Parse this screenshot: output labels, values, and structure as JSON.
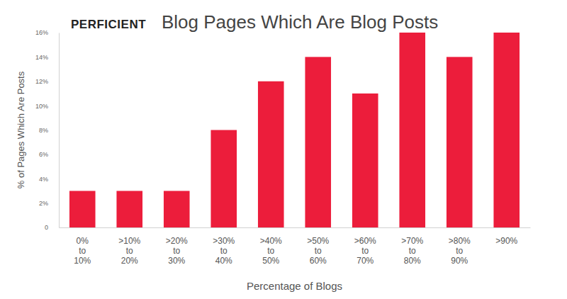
{
  "logo": "PERFICIENT",
  "chart_data": {
    "type": "bar",
    "title": "Blog Pages Which Are Blog Posts",
    "x_label": "Percentage of Blogs",
    "y_label": "% of Pages Which Are Posts",
    "categories": [
      "0% to 10%",
      ">10% to 20%",
      ">20% to 30%",
      ">30% to 40%",
      ">40% to 50%",
      ">50% to 60%",
      ">60% to 70%",
      ">70% to 80%",
      ">80% to 90%",
      ">90%"
    ],
    "values": [
      3,
      3,
      3,
      8,
      12,
      14,
      11,
      16,
      14,
      16
    ],
    "color": "#ec1d3b",
    "ylim": [
      0,
      16
    ],
    "yticks": [
      0,
      {
        "value": 2,
        "label": "2%"
      },
      {
        "value": 4,
        "label": "4%"
      },
      {
        "value": 6,
        "label": "6%"
      },
      {
        "value": 8,
        "label": "8%"
      },
      {
        "value": 10,
        "label": "10%"
      },
      {
        "value": 12,
        "label": "12%"
      },
      {
        "value": 14,
        "label": "14%"
      },
      {
        "value": 16,
        "label": "16%"
      }
    ],
    "grid": false
  }
}
